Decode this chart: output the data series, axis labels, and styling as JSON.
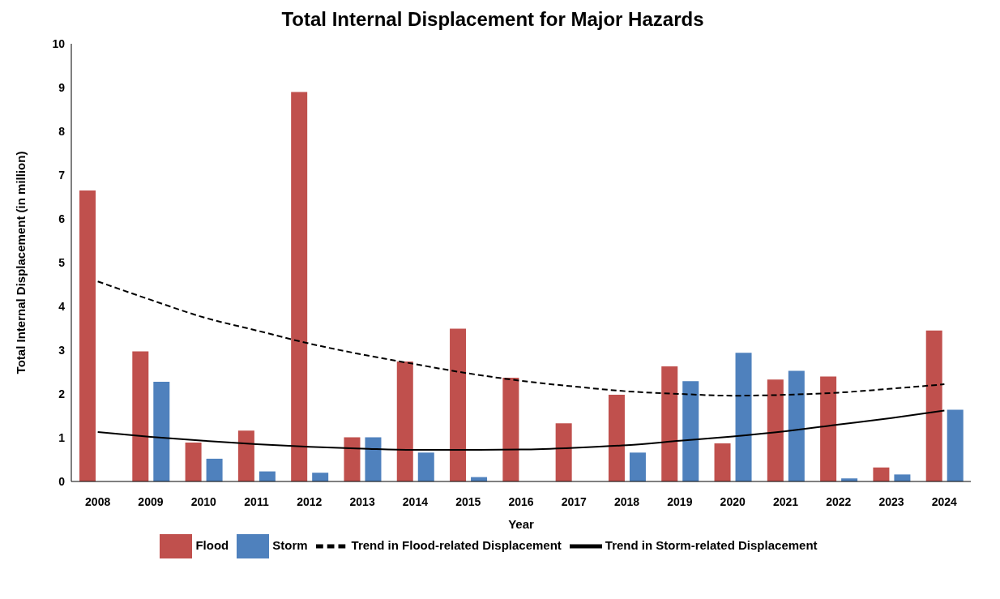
{
  "chart_data": {
    "type": "bar",
    "title": "Total Internal Displacement for Major Hazards",
    "xlabel": "Year",
    "ylabel": "Total Internal Displacement (in million)",
    "categories": [
      "2008",
      "2009",
      "2010",
      "2011",
      "2012",
      "2013",
      "2014",
      "2015",
      "2016",
      "2017",
      "2018",
      "2019",
      "2020",
      "2021",
      "2022",
      "2023",
      "2024"
    ],
    "series": [
      {
        "name": "Flood",
        "color": "#c0504d",
        "values": [
          6.65,
          2.97,
          0.89,
          1.16,
          8.9,
          1.01,
          2.74,
          3.49,
          2.37,
          1.33,
          1.98,
          2.63,
          0.87,
          2.33,
          2.4,
          0.32,
          3.45
        ]
      },
      {
        "name": "Storm",
        "color": "#4f81bd",
        "values": [
          null,
          2.28,
          0.52,
          0.23,
          0.2,
          1.01,
          0.66,
          0.1,
          null,
          null,
          0.66,
          2.29,
          2.94,
          2.53,
          0.07,
          0.16,
          1.64
        ]
      },
      {
        "name": "Trend in Flood-related Displacement",
        "type": "line",
        "line_style": "dashed",
        "color": "#000000",
        "values": [
          4.57,
          4.15,
          3.75,
          3.45,
          3.15,
          2.9,
          2.68,
          2.47,
          2.3,
          2.17,
          2.06,
          2.0,
          1.96,
          1.98,
          2.03,
          2.12,
          2.22
        ]
      },
      {
        "name": "Trend in Storm-related Displacement",
        "type": "line",
        "line_style": "solid",
        "color": "#000000",
        "values": [
          1.13,
          1.02,
          0.93,
          0.85,
          0.79,
          0.75,
          0.72,
          0.72,
          0.73,
          0.77,
          0.83,
          0.93,
          1.03,
          1.15,
          1.3,
          1.45,
          1.62
        ]
      }
    ],
    "ylim": [
      0,
      10
    ],
    "yticks": [
      0,
      1,
      2,
      3,
      4,
      5,
      6,
      7,
      8,
      9,
      10
    ],
    "legend": "bottom",
    "marker": "none"
  }
}
